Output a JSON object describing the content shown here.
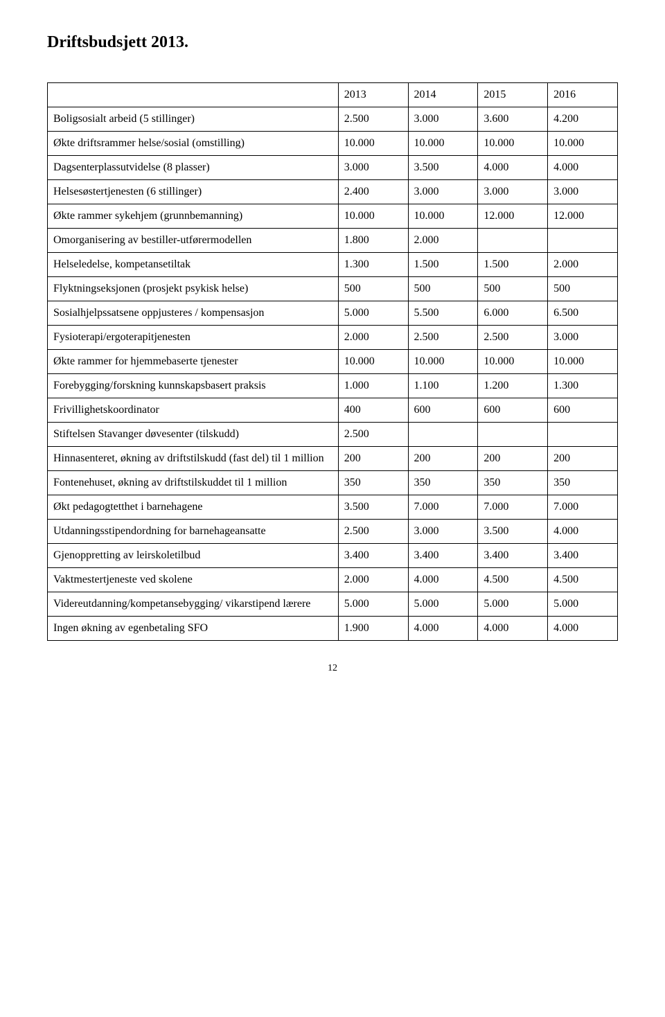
{
  "title": "Driftsbudsjett 2013.",
  "header": {
    "c0": "",
    "c1": "2013",
    "c2": "2014",
    "c3": "2015",
    "c4": "2016"
  },
  "rows": [
    {
      "label": "Boligsosialt arbeid (5 stillinger)",
      "v": [
        "2.500",
        "3.000",
        "3.600",
        "4.200"
      ]
    },
    {
      "label": "Økte driftsrammer helse/sosial (omstilling)",
      "v": [
        "10.000",
        "10.000",
        "10.000",
        "10.000"
      ]
    },
    {
      "label": "Dagsenterplassutvidelse (8 plasser)",
      "v": [
        "3.000",
        "3.500",
        "4.000",
        "4.000"
      ]
    },
    {
      "label": "Helsesøstertjenesten (6 stillinger)",
      "v": [
        "2.400",
        "3.000",
        "3.000",
        "3.000"
      ]
    },
    {
      "label": "Økte rammer sykehjem (grunnbemanning)",
      "v": [
        "10.000",
        "10.000",
        "12.000",
        "12.000"
      ]
    },
    {
      "label": "Omorganisering av bestiller-utførermodellen",
      "v": [
        "1.800",
        "2.000",
        "",
        ""
      ]
    },
    {
      "label": "Helseledelse, kompetansetiltak",
      "v": [
        "1.300",
        "1.500",
        "1.500",
        "2.000"
      ]
    },
    {
      "label": "Flyktningseksjonen (prosjekt psykisk helse)",
      "v": [
        "500",
        "500",
        "500",
        "500"
      ]
    },
    {
      "label": "Sosialhjelpssatsene oppjusteres / kompensasjon",
      "v": [
        "5.000",
        "5.500",
        "6.000",
        "6.500"
      ]
    },
    {
      "label": "Fysioterapi/ergoterapitjenesten",
      "v": [
        "2.000",
        "2.500",
        "2.500",
        "3.000"
      ]
    },
    {
      "label": "Økte rammer for hjemmebaserte tjenester",
      "v": [
        "10.000",
        "10.000",
        "10.000",
        "10.000"
      ]
    },
    {
      "label": "Forebygging/forskning kunnskapsbasert praksis",
      "v": [
        "1.000",
        "1.100",
        "1.200",
        "1.300"
      ]
    },
    {
      "label": "Frivillighetskoordinator",
      "v": [
        "400",
        "600",
        "600",
        "600"
      ]
    },
    {
      "label": "Stiftelsen Stavanger døvesenter (tilskudd)",
      "v": [
        "2.500",
        "",
        "",
        ""
      ]
    },
    {
      "label": "Hinnasenteret, økning av driftstilskudd (fast del) til 1 million",
      "v": [
        "200",
        "200",
        "200",
        "200"
      ]
    },
    {
      "label": "Fontenehuset, økning av driftstilskuddet til 1 million",
      "v": [
        "350",
        "350",
        "350",
        "350"
      ]
    },
    {
      "label": "Økt pedagogtetthet i barnehagene",
      "v": [
        "3.500",
        "7.000",
        "7.000",
        "7.000"
      ]
    },
    {
      "label": "Utdanningsstipendordning for barnehageansatte",
      "v": [
        "2.500",
        "3.000",
        "3.500",
        "4.000"
      ]
    },
    {
      "label": "Gjenoppretting av leirskoletilbud",
      "v": [
        "3.400",
        "3.400",
        "3.400",
        " 3.400"
      ]
    },
    {
      "label": "Vaktmestertjeneste ved skolene",
      "v": [
        "2.000",
        "4.000",
        "4.500",
        "4.500"
      ]
    },
    {
      "label": "Videreutdanning/kompetansebygging/ vikarstipend lærere",
      "v": [
        "5.000",
        "5.000",
        "5.000",
        "5.000"
      ]
    },
    {
      "label": "Ingen økning av egenbetaling SFO",
      "v": [
        "1.900",
        "4.000",
        " 4.000",
        " 4.000"
      ]
    }
  ],
  "pageNumber": "12"
}
